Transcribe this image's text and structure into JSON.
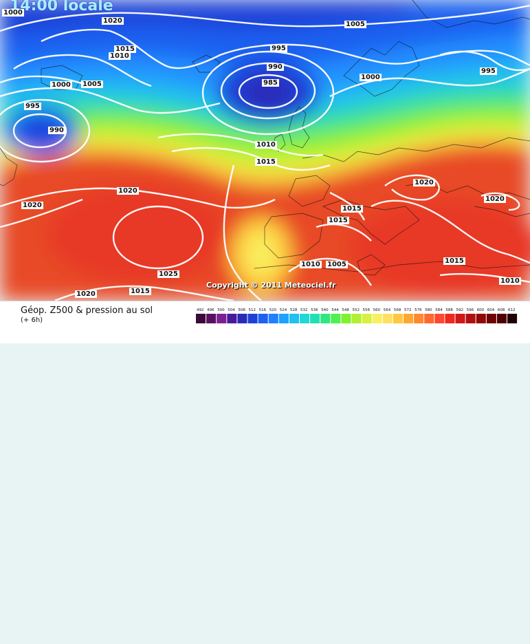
{
  "header": {
    "time_label": "14:00 locale"
  },
  "copyright": "Copyright © 2011 Meteociel.fr",
  "footer": {
    "title": "Géop. Z500 & pression au sol",
    "subtitle": "(+ 6h)"
  },
  "isobar_labels": [
    "1000",
    "1020",
    "1015",
    "1010",
    "1005",
    "1005",
    "995",
    "990",
    "985",
    "1000",
    "995",
    "1000",
    "995",
    "990",
    "1010",
    "1015",
    "1020",
    "1020",
    "1020",
    "1020",
    "1015",
    "1015",
    "1025",
    "1010",
    "1005",
    "1015",
    "1020",
    "1015",
    "1010"
  ],
  "legend": {
    "ticks": [
      "492",
      "496",
      "500",
      "504",
      "508",
      "512",
      "516",
      "520",
      "524",
      "528",
      "532",
      "536",
      "540",
      "544",
      "548",
      "552",
      "556",
      "560",
      "564",
      "568",
      "572",
      "576",
      "580",
      "584",
      "588",
      "592",
      "596",
      "600",
      "604",
      "608",
      "612"
    ],
    "colors": [
      "#3a0a3a",
      "#5a1060",
      "#7a2090",
      "#4a1a9a",
      "#2a2ab8",
      "#1c40d8",
      "#1e60f0",
      "#2080ff",
      "#20a0ff",
      "#20c0f0",
      "#20d8d8",
      "#20e0b0",
      "#30e880",
      "#50f050",
      "#80f030",
      "#b0f030",
      "#d8f040",
      "#f8f060",
      "#ffe060",
      "#ffc840",
      "#ffa830",
      "#ff8830",
      "#ff6830",
      "#ff4830",
      "#f02820",
      "#d01818",
      "#b01010",
      "#900808",
      "#700404",
      "#500000",
      "#200000"
    ]
  }
}
